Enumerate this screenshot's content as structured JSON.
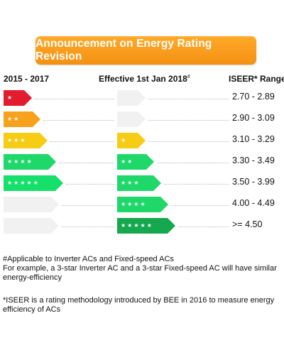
{
  "banner": {
    "title": "Announcement on Energy Rating Revision"
  },
  "headers": {
    "old": "2015 - 2017",
    "new": "Effective 1st Jan 2018",
    "new_mark": "#",
    "range": "ISEER* Range"
  },
  "colors": {
    "banner": "#f7a11d",
    "star1": "#e21b2d",
    "star2": "#f7a11d",
    "star3": "#f7cc14",
    "star4": "#1fd86a",
    "star5": "#15e06a",
    "new4": "#1fd86a",
    "new5": "#16a84e",
    "empty": "#f1f1f1"
  },
  "rows": [
    {
      "old_stars": 1,
      "new_stars": 0,
      "range": "2.70 - 2.89"
    },
    {
      "old_stars": 2,
      "new_stars": 0,
      "range": "2.90 - 3.09"
    },
    {
      "old_stars": 3,
      "new_stars": 1,
      "range": "3.10 - 3.29"
    },
    {
      "old_stars": 4,
      "new_stars": 2,
      "range": "3.30 - 3.49"
    },
    {
      "old_stars": 5,
      "new_stars": 3,
      "range": "3.50 - 3.99"
    },
    {
      "old_stars": 0,
      "new_stars": 4,
      "range": "4.00 - 4.49"
    },
    {
      "old_stars": 0,
      "new_stars": 5,
      "range": ">= 4.50"
    }
  ],
  "notes": {
    "applicable": "#Applicable to Inverter ACs and Fixed-speed ACs",
    "example": "For example, a 3-star Inverter AC and a 3-star Fixed-speed AC will have similar energy-efficiency",
    "iseer": "*ISEER is a rating methodology introduced by BEE in 2016 to measure energy efficiency of ACs"
  }
}
